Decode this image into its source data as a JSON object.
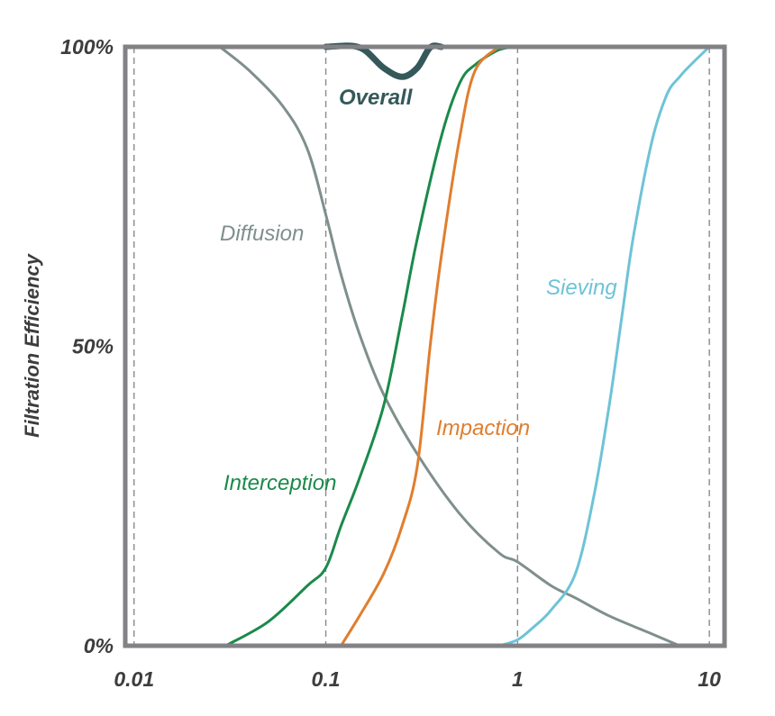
{
  "chart_data": {
    "type": "line",
    "title": "",
    "xlabel": "",
    "ylabel": "Filtration Efficiency",
    "x_scale": "log",
    "xlim": [
      0.009,
      12
    ],
    "ylim": [
      0,
      100
    ],
    "x_ticks": [
      {
        "value": 0.01,
        "label": "0.01"
      },
      {
        "value": 0.1,
        "label": "0.1"
      },
      {
        "value": 1,
        "label": "1"
      },
      {
        "value": 10,
        "label": "10"
      }
    ],
    "y_ticks": [
      {
        "value": 0,
        "label": "0%"
      },
      {
        "value": 50,
        "label": "50%"
      },
      {
        "value": 100,
        "label": "100%"
      }
    ],
    "grid": "vertical dashed at x ticks",
    "series": [
      {
        "name": "Diffusion",
        "label": "Diffusion",
        "color": "#7f8f8e",
        "x": [
          0.028,
          0.04,
          0.06,
          0.08,
          0.1,
          0.12,
          0.15,
          0.2,
          0.3,
          0.5,
          0.8,
          1.0,
          1.5,
          2,
          3,
          5,
          7
        ],
        "y": [
          100,
          96,
          90,
          83,
          72,
          62,
          52,
          42,
          32,
          22,
          15.5,
          14,
          10,
          8,
          5,
          2,
          0
        ]
      },
      {
        "name": "Interception",
        "label": "Interception",
        "color": "#1a8a4a",
        "x": [
          0.03,
          0.05,
          0.08,
          0.1,
          0.12,
          0.15,
          0.2,
          0.25,
          0.3,
          0.4,
          0.5,
          0.6,
          0.8,
          1.0
        ],
        "y": [
          0,
          4,
          10,
          13,
          20,
          28,
          40,
          55,
          68,
          85,
          94,
          97,
          99.5,
          100
        ]
      },
      {
        "name": "Impaction",
        "label": "Impaction",
        "color": "#e07e2e",
        "x": [
          0.12,
          0.15,
          0.2,
          0.25,
          0.3,
          0.35,
          0.4,
          0.5,
          0.6,
          0.8
        ],
        "y": [
          0,
          5,
          12,
          20,
          30,
          50,
          65,
          85,
          96,
          100
        ]
      },
      {
        "name": "Sieving",
        "label": "Sieving",
        "color": "#6ec3d7",
        "x": [
          0.8,
          1.0,
          1.2,
          1.5,
          2,
          2.5,
          3,
          3.5,
          4,
          5,
          6,
          7,
          8,
          10
        ],
        "y": [
          0,
          1,
          3,
          6,
          12,
          25,
          40,
          55,
          68,
          84,
          92,
          95,
          97,
          100
        ]
      },
      {
        "name": "Overall",
        "label": "Overall",
        "color": "#35585a",
        "x": [
          0.1,
          0.15,
          0.2,
          0.25,
          0.3,
          0.35,
          0.4
        ],
        "y": [
          100,
          99.9,
          96.5,
          95,
          96.5,
          99.9,
          100
        ]
      }
    ]
  }
}
